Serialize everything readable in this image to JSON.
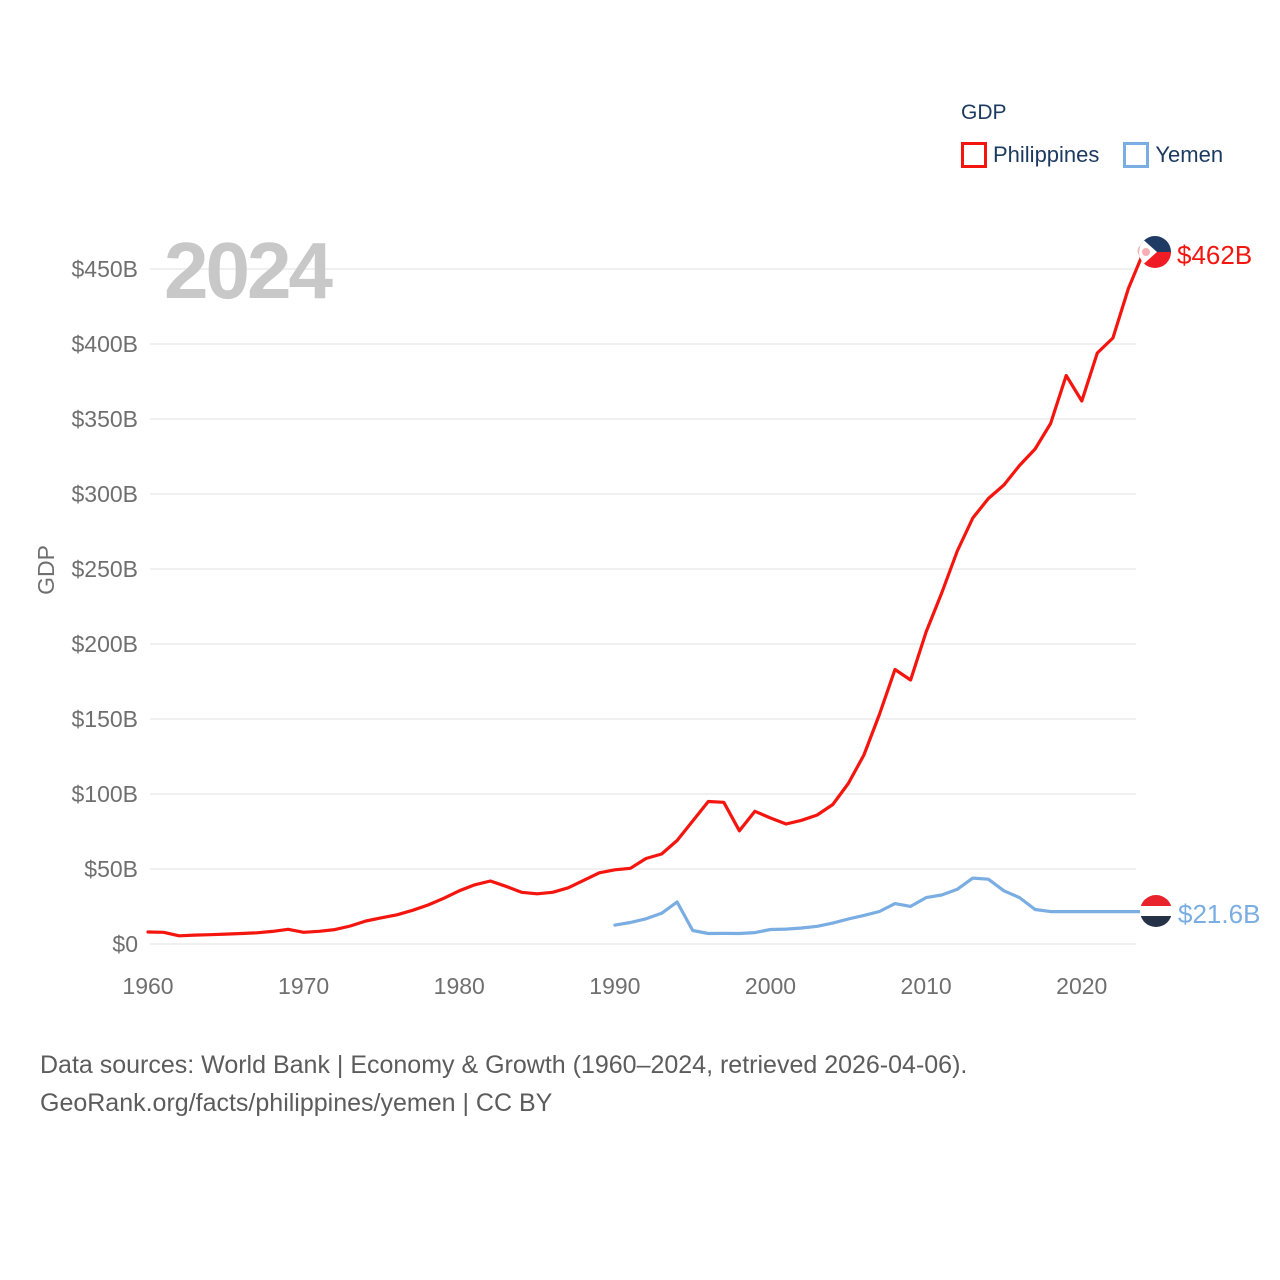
{
  "watermark_year": "2024",
  "legend": {
    "title": "GDP",
    "items": [
      {
        "label": "Philippines",
        "color": "#f5150f"
      },
      {
        "label": "Yemen",
        "color": "#7aade2"
      }
    ]
  },
  "y_axis": {
    "title": "GDP",
    "tick_labels": [
      "$0",
      "$50B",
      "$100B",
      "$150B",
      "$200B",
      "$250B",
      "$300B",
      "$350B",
      "$400B",
      "$450B"
    ],
    "tick_values": [
      0,
      50,
      100,
      150,
      200,
      250,
      300,
      350,
      400,
      450
    ]
  },
  "x_axis": {
    "tick_labels": [
      "1960",
      "1970",
      "1980",
      "1990",
      "2000",
      "2010",
      "2020"
    ],
    "tick_values": [
      1960,
      1970,
      1980,
      1990,
      2000,
      2010,
      2020
    ]
  },
  "end_labels": {
    "philippines": {
      "value_label": "$462B",
      "flag": "philippines-flag"
    },
    "yemen": {
      "value_label": "$21.6B",
      "flag": "yemen-flag"
    }
  },
  "footer": {
    "line1": "Data sources: World Bank | Economy & Growth (1960–2024, retrieved 2026-04-06).",
    "line2": "GeoRank.org/facts/philippines/yemen | CC BY"
  },
  "colors": {
    "philippines_line": "#f5150f",
    "yemen_line": "#7aade2",
    "legend_text": "#1c3a5f",
    "axis_text": "#6f6f6f",
    "footer_text": "#5c5c5c",
    "watermark": "#c8c8c8",
    "gridline": "#e8e8e8"
  },
  "chart_data": {
    "type": "line",
    "title": "GDP",
    "ylabel": "GDP",
    "xlim": [
      1960,
      2024
    ],
    "ylim": [
      0,
      480
    ],
    "grid": "horizontal",
    "legend_position": "top-right",
    "series": [
      {
        "name": "Philippines",
        "color": "#f5150f",
        "end_value_label": "$462B",
        "years": [
          1960,
          1961,
          1962,
          1963,
          1964,
          1965,
          1966,
          1967,
          1968,
          1969,
          1970,
          1971,
          1972,
          1973,
          1974,
          1975,
          1976,
          1977,
          1978,
          1979,
          1980,
          1981,
          1982,
          1983,
          1984,
          1985,
          1986,
          1987,
          1988,
          1989,
          1990,
          1991,
          1992,
          1993,
          1994,
          1995,
          1996,
          1997,
          1998,
          1999,
          2000,
          2001,
          2002,
          2003,
          2004,
          2005,
          2006,
          2007,
          2008,
          2009,
          2010,
          2011,
          2012,
          2013,
          2014,
          2015,
          2016,
          2017,
          2018,
          2019,
          2020,
          2021,
          2022,
          2023,
          2024
        ],
        "values": [
          8,
          7.8,
          5.5,
          5.9,
          6.2,
          6.6,
          7,
          7.5,
          8.4,
          9.8,
          7.8,
          8.5,
          9.6,
          12,
          15.3,
          17.5,
          19.5,
          22.5,
          26,
          30.5,
          35.5,
          39.5,
          42,
          38.5,
          34.5,
          33.5,
          34.5,
          37.5,
          42.5,
          47.5,
          49.5,
          50.5,
          57,
          60,
          69,
          82,
          95,
          94.5,
          75.5,
          88.5,
          84,
          80,
          82.5,
          86,
          93,
          107,
          126,
          153,
          183,
          176,
          208,
          234,
          262,
          284,
          297,
          306,
          319,
          330,
          347,
          379,
          362,
          394,
          404,
          437,
          462
        ]
      },
      {
        "name": "Yemen",
        "color": "#7aade2",
        "end_value_label": "$21.6B",
        "years": [
          1990,
          1991,
          1992,
          1993,
          1994,
          1995,
          1996,
          1997,
          1998,
          1999,
          2000,
          2001,
          2002,
          2003,
          2004,
          2005,
          2006,
          2007,
          2008,
          2009,
          2010,
          2011,
          2012,
          2013,
          2014,
          2015,
          2016,
          2017,
          2018,
          2019,
          2020,
          2021,
          2022,
          2023,
          2024
        ],
        "values": [
          12.6,
          14.3,
          16.8,
          20.5,
          28,
          9,
          7,
          7.1,
          7,
          7.6,
          9.7,
          9.9,
          10.7,
          11.8,
          13.9,
          16.7,
          19.1,
          21.7,
          26.9,
          25.1,
          30.9,
          32.7,
          36.5,
          43.9,
          43.2,
          35.5,
          30.9,
          23,
          21.6,
          21.6,
          21.6,
          21.6,
          21.6,
          21.6,
          21.6
        ]
      }
    ]
  }
}
